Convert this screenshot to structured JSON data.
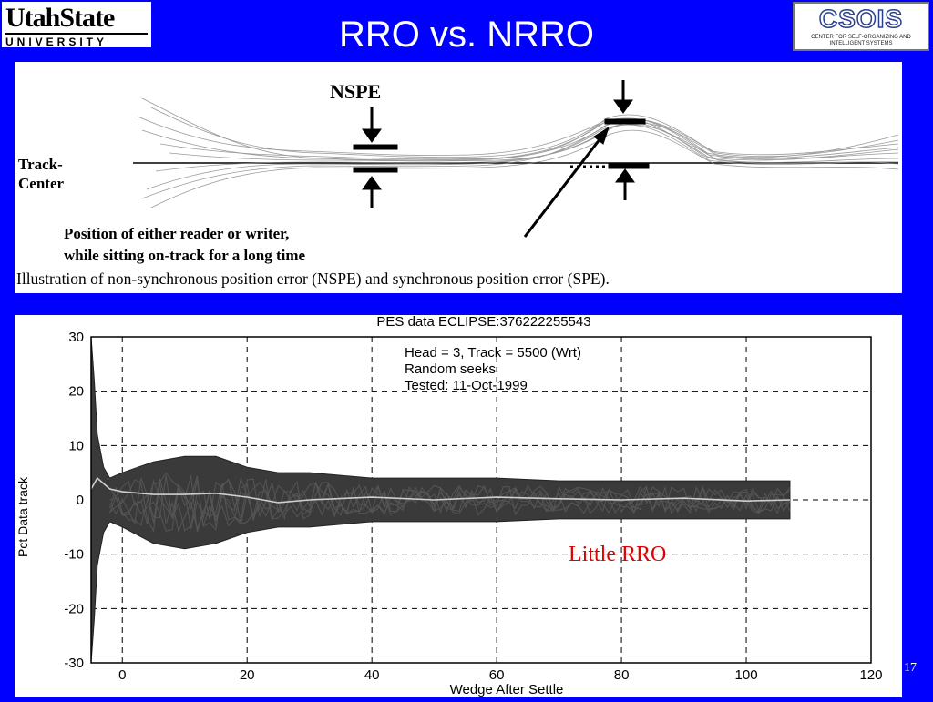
{
  "header": {
    "title": "RRO vs. NRRO",
    "logo_left": {
      "name": "UtahState",
      "subtitle": "UNIVERSITY"
    },
    "logo_right": {
      "name": "CSOIS",
      "subtitle": "CENTER FOR SELF-ORGANIZING AND INTELLIGENT SYSTEMS"
    }
  },
  "illustration": {
    "nspe_label": "NSPE",
    "track_label_1": "Track-",
    "track_label_2": "Center",
    "position_line_1": "Position of either reader or writer,",
    "position_line_2": "while sitting on-track for a long time",
    "caption": "Illustration of non-synchronous position error (NSPE) and synchronous position error (SPE)."
  },
  "chart_data": {
    "type": "line",
    "title": "PES data ECLIPSE:376222255543",
    "xlabel": "Wedge After Settle",
    "ylabel": "Pct Data track",
    "xlim": [
      -5,
      120
    ],
    "ylim": [
      -30,
      30
    ],
    "xticks": [
      0,
      20,
      40,
      60,
      80,
      100,
      120
    ],
    "yticks": [
      30,
      20,
      10,
      0,
      -10,
      -20,
      -30
    ],
    "grid": "dashed",
    "annotations": [
      "Head = 3, Track = 5500  (Wrt)",
      "Random seeks",
      "Tested: 11-Oct-1999"
    ],
    "overlay_label": "Little RRO",
    "series": [
      {
        "color": "#cfcfcf",
        "x": [
          -5,
          -4,
          -3,
          -2,
          0,
          5,
          10,
          15,
          20,
          25,
          30,
          40,
          50,
          60,
          70,
          80,
          90,
          100,
          107
        ],
        "values": [
          2,
          4,
          3,
          2,
          1.5,
          1,
          1,
          1.2,
          0.5,
          -0.5,
          0,
          0.5,
          0,
          0.5,
          0.2,
          0,
          0.3,
          -0.2,
          0
        ]
      }
    ],
    "band": {
      "x": [
        -5,
        -4.5,
        -4,
        -3,
        -2,
        0,
        5,
        10,
        15,
        20,
        25,
        30,
        40,
        50,
        60,
        70,
        80,
        90,
        100,
        107
      ],
      "upper": [
        30,
        22,
        12,
        6,
        4,
        5,
        7,
        8,
        8,
        6,
        5,
        5,
        4,
        4,
        4,
        3.5,
        3.5,
        3.5,
        3.5,
        3.5
      ],
      "lower": [
        -30,
        -22,
        -12,
        -6,
        -4,
        -5,
        -8,
        -9,
        -8,
        -6,
        -5,
        -5,
        -4,
        -4,
        -4,
        -3.5,
        -3.5,
        -3.5,
        -3.5,
        -3.5
      ]
    }
  },
  "page_number": "17"
}
